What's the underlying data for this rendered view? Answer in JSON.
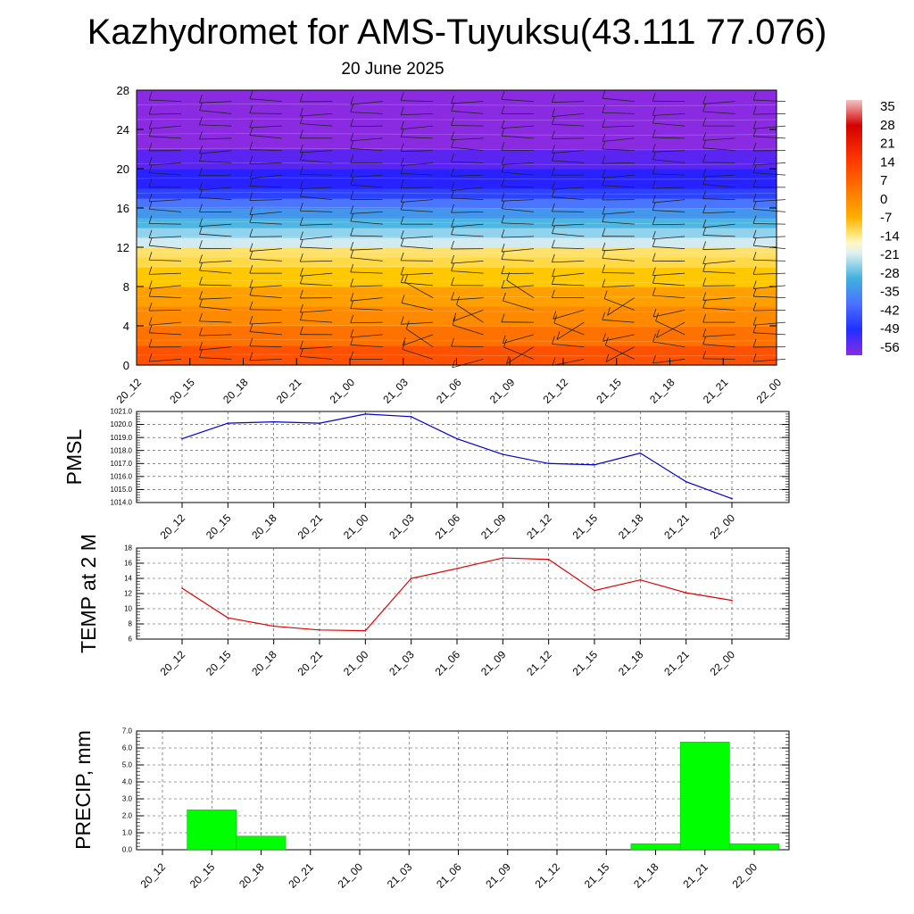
{
  "title": "Kazhydromet for AMS-Tuyuksu(43.111 77.076)",
  "subtitle": "20 June 2025",
  "time_labels": [
    "20_12",
    "20_15",
    "20_18",
    "20_21",
    "21_00",
    "21_03",
    "21_06",
    "21_09",
    "21_12",
    "21_15",
    "21_18",
    "21_21",
    "22_00"
  ],
  "chart_data": [
    {
      "type": "heatmap",
      "xlabel": "",
      "ylabel": "",
      "ylim": [
        0,
        28
      ],
      "y_ticks": [
        "0",
        "4",
        "8",
        "12",
        "16",
        "20",
        "24",
        "28"
      ],
      "bands": [
        {
          "from": 0,
          "to": 2,
          "value": 7
        },
        {
          "from": 2,
          "to": 4,
          "value": 3
        },
        {
          "from": 4,
          "to": 6,
          "value": 0
        },
        {
          "from": 6,
          "to": 8,
          "value": -3
        },
        {
          "from": 8,
          "to": 10,
          "value": -6
        },
        {
          "from": 10,
          "to": 11,
          "value": -8
        },
        {
          "from": 11,
          "to": 12,
          "value": -9
        },
        {
          "from": 12,
          "to": 13,
          "value": -17
        },
        {
          "from": 13,
          "to": 14,
          "value": -22
        },
        {
          "from": 14,
          "to": 15,
          "value": -27
        },
        {
          "from": 15,
          "to": 16,
          "value": -32
        },
        {
          "from": 16,
          "to": 17,
          "value": -37
        },
        {
          "from": 17,
          "to": 18,
          "value": -43
        },
        {
          "from": 18,
          "to": 20,
          "value": -50
        },
        {
          "from": 20,
          "to": 22,
          "value": -56
        },
        {
          "from": 22,
          "to": 28,
          "value": -60
        }
      ],
      "colorbar": {
        "labels": [
          "35",
          "28",
          "21",
          "14",
          "7",
          "0",
          "-7",
          "-14",
          "-21",
          "-28",
          "-35",
          "-42",
          "-49",
          "-56"
        ],
        "colors": {
          "top": "#f2c4c4",
          "red": "#d40000",
          "orange": "#ff7a00",
          "yellow": "#ffe169",
          "pale": "#dff0f0",
          "cyan": "#40b0e0",
          "blue": "#2030ff",
          "violet": "#8a2be2"
        }
      },
      "wind_barbs": true
    },
    {
      "type": "line",
      "ylabel": "PMSL",
      "ylim": [
        1014,
        1021
      ],
      "y_ticks": [
        "1014.0",
        "1015.0",
        "1016.0",
        "1017.0",
        "1018.0",
        "1019.0",
        "1020.0",
        "1021.0"
      ],
      "x": [
        "20_12",
        "20_15",
        "20_18",
        "20_21",
        "21_00",
        "21_03",
        "21_06",
        "21_09",
        "21_12",
        "21_15",
        "21_18",
        "21_21",
        "22_00"
      ],
      "values": [
        1018.9,
        1020.1,
        1020.2,
        1020.1,
        1020.8,
        1020.6,
        1018.9,
        1017.7,
        1017.0,
        1016.9,
        1017.8,
        1015.6,
        1014.3
      ],
      "color": "#0000cc"
    },
    {
      "type": "line",
      "ylabel": "TEMP at 2 M",
      "ylim": [
        6,
        18
      ],
      "y_ticks": [
        "6",
        "8",
        "10",
        "12",
        "14",
        "16",
        "18"
      ],
      "x": [
        "20_12",
        "20_15",
        "20_18",
        "20_21",
        "21_00",
        "21_03",
        "21_06",
        "21_09",
        "21_12",
        "21_15",
        "21_18",
        "21_21",
        "22_00"
      ],
      "values": [
        12.7,
        8.8,
        7.7,
        7.2,
        7.1,
        14.0,
        15.3,
        16.7,
        16.5,
        12.4,
        13.8,
        12.1,
        11.1
      ],
      "color": "#dd0000"
    },
    {
      "type": "bar",
      "ylabel": "PRECIP, mm",
      "ylim": [
        0,
        7
      ],
      "y_ticks": [
        "0.0",
        "1.0",
        "2.0",
        "3.0",
        "4.0",
        "5.0",
        "6.0",
        "7.0"
      ],
      "categories": [
        "20_12",
        "20_15",
        "20_18",
        "20_21",
        "21_00",
        "21_03",
        "21_06",
        "21_09",
        "21_12",
        "21_15",
        "21_18",
        "21_21",
        "22_00"
      ],
      "values": [
        0,
        2.35,
        0.8,
        0,
        0,
        0,
        0,
        0,
        0,
        0,
        0.35,
        6.35,
        0.35
      ],
      "color": "#00ff00"
    }
  ]
}
